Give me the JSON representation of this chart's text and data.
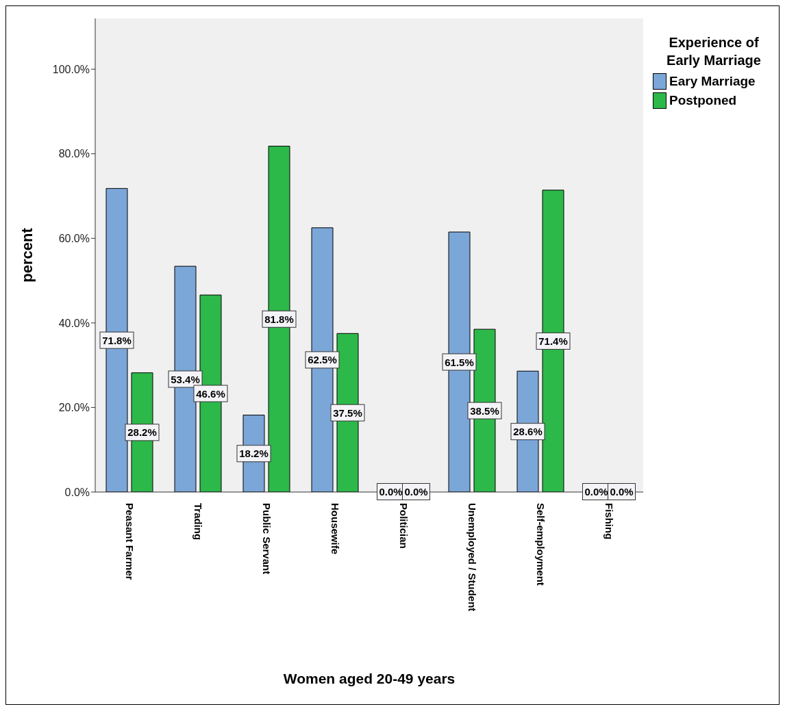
{
  "chart_data": {
    "type": "bar",
    "xlabel": "Women aged 20-49 years",
    "ylabel": "percent",
    "legend_title": "Experience of Early Marriage",
    "categories": [
      "Peasant Farmer",
      "Trading",
      "Public Servant",
      "Housewife",
      "Politician",
      "Unemployed / Student",
      "Self-employment",
      "Fishing"
    ],
    "series": [
      {
        "name": "Eary Marriage",
        "color": "#7ba6d8",
        "values": [
          71.8,
          53.4,
          18.2,
          62.5,
          0,
          61.5,
          28.6,
          0
        ],
        "value_labels": [
          "71.8%",
          "53.4%",
          "18.2%",
          "62.5%",
          "0.0%",
          "61.5%",
          "28.6%",
          "0.0%"
        ]
      },
      {
        "name": "Postponed",
        "color": "#2db84a",
        "values": [
          28.2,
          46.6,
          81.8,
          37.5,
          0,
          38.5,
          71.4,
          0
        ],
        "value_labels": [
          "28.2%",
          "46.6%",
          "81.8%",
          "37.5%",
          "0.0%",
          "38.5%",
          "71.4%",
          "0.0%"
        ]
      }
    ],
    "ylim": [
      0,
      112
    ],
    "yticks": [
      {
        "value": 0,
        "label": "0.0%"
      },
      {
        "value": 20,
        "label": "20.0%"
      },
      {
        "value": 40,
        "label": "40.0%"
      },
      {
        "value": 60,
        "label": "60.0%"
      },
      {
        "value": 80,
        "label": "80.0%"
      },
      {
        "value": 100,
        "label": "100.0%"
      }
    ],
    "grid": false,
    "legend": "top right"
  }
}
